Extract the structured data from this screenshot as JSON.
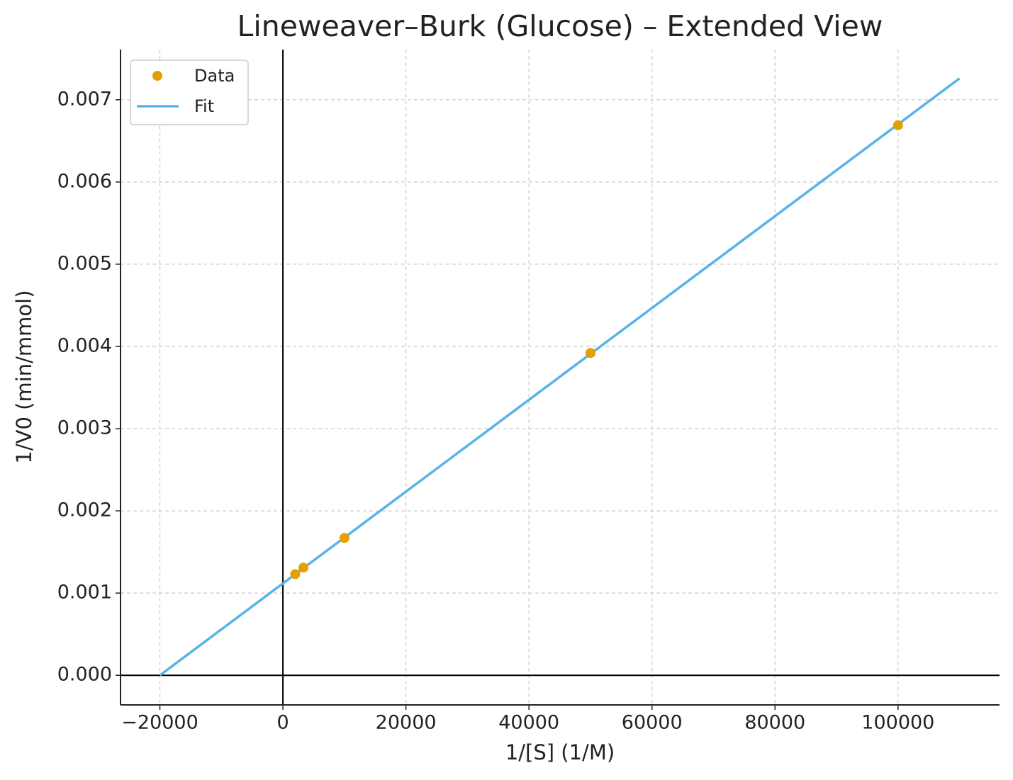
{
  "chart_data": {
    "type": "scatter-line",
    "title": "Lineweaver–Burk (Glucose) – Extended View",
    "x_label": "1/[S] (1/M)",
    "y_label": "1/V0 (min/mmol)",
    "series": [
      {
        "name": "Data",
        "kind": "scatter",
        "color": "#e69f00",
        "x": [
          2000,
          3333,
          10000,
          50000,
          100000
        ],
        "values": [
          0.00123,
          0.00131,
          0.00167,
          0.00392,
          0.00669
        ]
      },
      {
        "name": "Fit",
        "kind": "line",
        "color": "#56b4e9",
        "x": [
          -20000,
          110000
        ],
        "values": [
          0,
          0.00726
        ]
      }
    ],
    "xlim": [
      -26400,
      116500
    ],
    "ylim": [
      -0.00036,
      0.00761
    ],
    "xticks": [
      {
        "value": -20000,
        "label": "−20000"
      },
      0,
      20000,
      40000,
      60000,
      80000,
      100000
    ],
    "yticks": [
      {
        "value": 0,
        "label": "0.000"
      },
      {
        "value": 0.001,
        "label": "0.001"
      },
      {
        "value": 0.002,
        "label": "0.002"
      },
      {
        "value": 0.003,
        "label": "0.003"
      },
      {
        "value": 0.004,
        "label": "0.004"
      },
      {
        "value": 0.005,
        "label": "0.005"
      },
      {
        "value": 0.006,
        "label": "0.006"
      },
      {
        "value": 0.007,
        "label": "0.007"
      }
    ],
    "grid": true,
    "zero_lines": true,
    "legend": "upper-left"
  }
}
